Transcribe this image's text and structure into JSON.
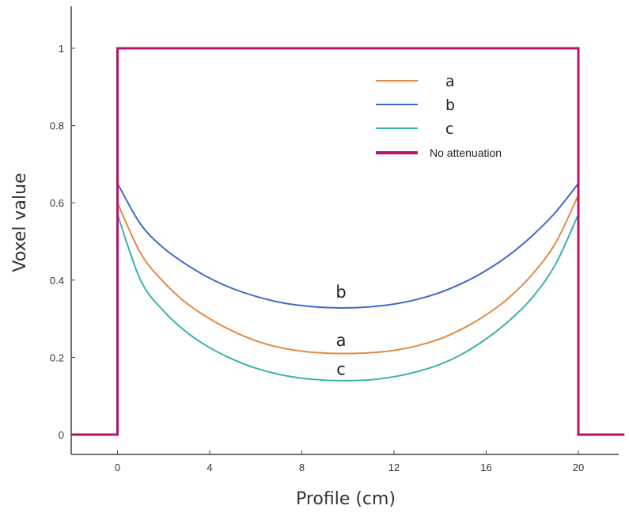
{
  "chart_data": {
    "type": "line",
    "xlabel": "Profile (cm)",
    "ylabel": "Voxel value",
    "xlim": [
      -2,
      22
    ],
    "ylim": [
      0,
      1.08
    ],
    "x_ticks": [
      "0",
      "4",
      "8",
      "12",
      "16",
      "20"
    ],
    "y_ticks": [
      "0",
      "0.2",
      "0.4",
      "0.6",
      "0.8",
      "1"
    ],
    "grid": false,
    "legend_position": "top-right",
    "series": [
      {
        "name": "a",
        "color": "#e08c46",
        "x": [
          0,
          1,
          2,
          3,
          4,
          5,
          6,
          7,
          8,
          9,
          10,
          11,
          12,
          13,
          14,
          15,
          16,
          17,
          18,
          19,
          20
        ],
        "y": [
          0.6,
          0.47,
          0.395,
          0.34,
          0.3,
          0.268,
          0.243,
          0.226,
          0.216,
          0.211,
          0.21,
          0.212,
          0.218,
          0.23,
          0.248,
          0.275,
          0.31,
          0.355,
          0.415,
          0.495,
          0.62
        ]
      },
      {
        "name": "b",
        "color": "#3f6bc4",
        "x": [
          0,
          1,
          2,
          3,
          4,
          5,
          6,
          7,
          8,
          9,
          10,
          11,
          12,
          13,
          14,
          15,
          16,
          17,
          18,
          19,
          20
        ],
        "y": [
          0.65,
          0.545,
          0.483,
          0.44,
          0.405,
          0.378,
          0.358,
          0.343,
          0.334,
          0.329,
          0.328,
          0.331,
          0.338,
          0.35,
          0.368,
          0.393,
          0.425,
          0.465,
          0.515,
          0.575,
          0.65
        ]
      },
      {
        "name": "c",
        "color": "#3bb3ad",
        "x": [
          0,
          1,
          2,
          3,
          4,
          5,
          6,
          7,
          8,
          9,
          10,
          11,
          12,
          13,
          14,
          15,
          16,
          17,
          18,
          19,
          20
        ],
        "y": [
          0.57,
          0.4,
          0.32,
          0.265,
          0.225,
          0.195,
          0.172,
          0.156,
          0.146,
          0.141,
          0.14,
          0.142,
          0.15,
          0.163,
          0.182,
          0.21,
          0.248,
          0.295,
          0.355,
          0.44,
          0.57
        ]
      },
      {
        "name": "No attenuation",
        "color": "#b5156c",
        "x": [
          -2,
          0,
          0,
          20,
          20,
          22
        ],
        "y": [
          0,
          0,
          1,
          1,
          0,
          0
        ]
      }
    ],
    "annotations": [
      {
        "text": "b",
        "x": 9.7,
        "y": 0.355
      },
      {
        "text": "a",
        "x": 9.7,
        "y": 0.23
      },
      {
        "text": "c",
        "x": 9.7,
        "y": 0.155
      }
    ]
  }
}
